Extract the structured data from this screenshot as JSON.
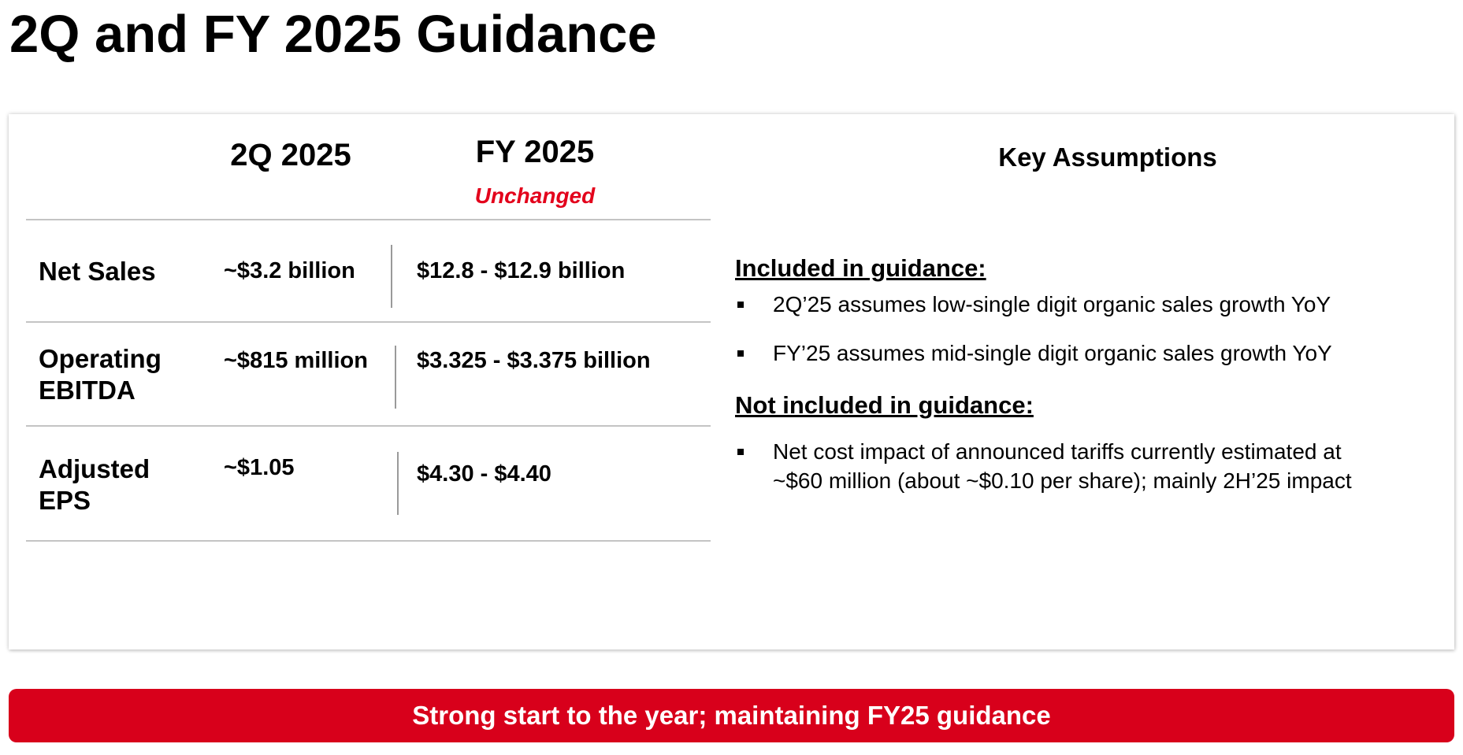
{
  "title": "2Q and FY 2025 Guidance",
  "colors": {
    "accent_red": "#d8001b",
    "unchanged_red": "#e3001b",
    "divider_gray": "#c4c4c4"
  },
  "table": {
    "headers": {
      "q2": "2Q 2025",
      "fy": "FY 2025",
      "fy_sub": "Unchanged"
    },
    "rows": [
      {
        "label_line1": "Net Sales",
        "label_line2": "",
        "q2": "~$3.2 billion",
        "fy": "$12.8 - $12.9 billion"
      },
      {
        "label_line1": "Operating",
        "label_line2": "EBITDA",
        "q2": "~$815 million",
        "fy": "$3.325 - $3.375 billion"
      },
      {
        "label_line1": "Adjusted",
        "label_line2": "EPS",
        "q2": "~$1.05",
        "fy": "$4.30 - $4.40"
      }
    ]
  },
  "assumptions": {
    "title": "Key Assumptions",
    "included": {
      "heading": "Included in guidance:",
      "bullets": [
        "2Q’25 assumes low-single digit organic sales growth YoY",
        "FY’25 assumes mid-single digit organic sales growth YoY"
      ]
    },
    "not_included": {
      "heading": "Not included in guidance:",
      "bullets": [
        {
          "line1": "Net cost impact of announced tariffs currently estimated at",
          "line2": "~$60 million (about ~$0.10 per share); mainly 2H’25 impact"
        }
      ]
    }
  },
  "banner": "Strong start to the year; maintaining FY25 guidance"
}
